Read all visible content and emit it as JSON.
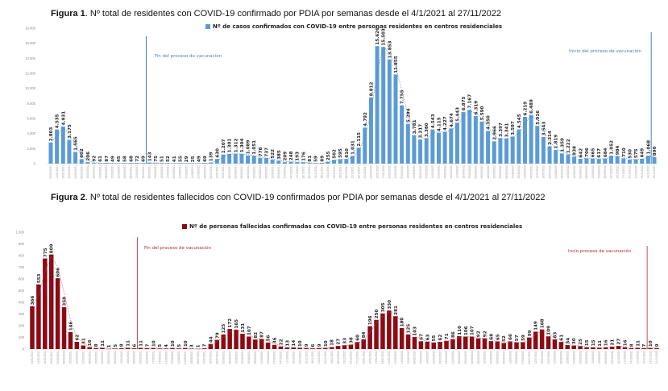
{
  "figure1": {
    "title_prefix": "Figura 1",
    "title_rest": ". Nº total de residentes con COVID-19 confirmado por PDIA por semanas desde el 4/1/2021 al 27/11/2022",
    "legend": "Nº de casos confirmados con COVID-19 entre personas residentes en centros residenciales",
    "annotation_left": "Fin del proceso de vacunación",
    "annotation_right": "Inicio del proceso de vacunación"
  },
  "figure2": {
    "title_prefix": "Figura 2",
    "title_rest": ". Nº total de residentes fallecidos con COVID-19 confirmados por PDIA por semanas desde el 4/1/2021 al 27/11/2022",
    "legend": "Nº de personas fallecidas confirmadas con COVID-19 entre personas residentes en centros residenciales",
    "annotation_left": "Fin del proceso de vacunación",
    "annotation_right": "Incio proceso de vacunación"
  },
  "chart_data": [
    {
      "type": "bar",
      "title": "Nº total de residentes con COVID-19 confirmado por PDIA por semanas desde el 4/1/2021 al 27/11/2022",
      "series_name": "Nº de casos confirmados con COVID-19 entre personas residentes en centros residenciales",
      "color": "#5b9bd5",
      "line_color": "#4a7fb5",
      "ylim": [
        0,
        18000
      ],
      "yticks": [
        0,
        2000,
        4000,
        6000,
        8000,
        10000,
        12000,
        14000,
        16000,
        18000
      ],
      "ytick_labels": [
        "0",
        "2.000",
        "4.000",
        "6.000",
        "8.000",
        "10.000",
        "12.000",
        "14.000",
        "16.000",
        "18.000"
      ],
      "legend_position": "top",
      "trendline": "dotted moving average",
      "markers": [
        {
          "after_index": 15,
          "label": "Fin del proceso de vacunación"
        },
        {
          "after_index": 97,
          "label": "Inicio del proceso de vacunación"
        }
      ],
      "categories": [
        "04/01/2021",
        "11/01/2021",
        "18/01/2021",
        "25/01/2021",
        "01/02/2021",
        "08/02/2021",
        "15/02/2021",
        "22/02/2021",
        "01/03/2021",
        "08/03/2021",
        "15/03/2021",
        "22/03/2021",
        "29/03/2021",
        "05/04/2021",
        "12/04/2021",
        "19/04/2021",
        "26/04/2021",
        "03/05/2021",
        "10/05/2021",
        "17/05/2021",
        "24/05/2021",
        "31/05/2021",
        "07/06/2021",
        "14/06/2021",
        "21/06/2021",
        "28/06/2021",
        "05/07/2021",
        "12/07/2021",
        "19/07/2021",
        "26/07/2021",
        "02/08/2021",
        "09/08/2021",
        "16/08/2021",
        "23/08/2021",
        "30/08/2021",
        "06/09/2021",
        "13/09/2021",
        "20/09/2021",
        "27/09/2021",
        "04/10/2021",
        "11/10/2021",
        "18/10/2021",
        "25/10/2021",
        "01/11/2021",
        "08/11/2021",
        "15/11/2021",
        "22/11/2021",
        "29/11/2021",
        "06/12/2021",
        "13/12/2021",
        "20/12/2021",
        "27/12/2021",
        "03/01/2022",
        "10/01/2022",
        "17/01/2022",
        "24/01/2022",
        "31/01/2022",
        "07/02/2022",
        "14/02/2022",
        "21/02/2022",
        "28/02/2022",
        "07/03/2022",
        "14/03/2022",
        "21/03/2022",
        "28/03/2022",
        "04/04/2022",
        "11/04/2022",
        "18/04/2022",
        "25/04/2022",
        "02/05/2022",
        "09/05/2022",
        "16/05/2022",
        "23/05/2022",
        "30/05/2022",
        "06/06/2022",
        "13/06/2022",
        "20/06/2022",
        "27/06/2022",
        "04/07/2022",
        "11/07/2022",
        "18/07/2022",
        "25/07/2022",
        "01/08/2022",
        "08/08/2022",
        "15/08/2022",
        "22/08/2022",
        "29/08/2022",
        "05/09/2022",
        "12/09/2022",
        "19/09/2022",
        "26/09/2022",
        "03/10/2022",
        "10/10/2022",
        "17/10/2022",
        "24/10/2022",
        "31/10/2022",
        "07/11/2022",
        "14/11/2022",
        "21/11/2022"
      ],
      "values": [
        2803,
        4535,
        4931,
        3175,
        1565,
        602,
        206,
        92,
        61,
        87,
        49,
        45,
        58,
        68,
        72,
        69,
        143,
        75,
        51,
        52,
        41,
        55,
        29,
        25,
        49,
        69,
        139,
        630,
        1207,
        1301,
        1312,
        1304,
        1089,
        1051,
        778,
        737,
        522,
        385,
        209,
        248,
        193,
        176,
        81,
        59,
        89,
        255,
        502,
        595,
        610,
        1031,
        2115,
        4792,
        8812,
        15626,
        15503,
        13853,
        11855,
        7755,
        5294,
        3781,
        3217,
        3380,
        4543,
        4115,
        4227,
        4674,
        5443,
        6875,
        7167,
        6319,
        5590,
        4350,
        2966,
        3397,
        3341,
        3597,
        4545,
        6219,
        6489,
        5016,
        3543,
        2314,
        1819,
        1359,
        1222,
        938,
        642,
        706,
        665,
        617,
        684,
        1052,
        984,
        710,
        530,
        575,
        649,
        1068,
        890
      ]
    },
    {
      "type": "bar",
      "title": "Nº total de residentes fallecidos con COVID-19 confirmados por PDIA por semanas desde el 4/1/2021 al 27/11/2022",
      "series_name": "Nº de personas fallecidas confirmadas con COVID-19 entre personas residentes en centros residenciales",
      "color": "#8b0a14",
      "line_color": "#c0505a",
      "ylim": [
        0,
        1000
      ],
      "yticks": [
        0,
        100,
        200,
        300,
        400,
        500,
        600,
        700,
        800,
        900,
        1000
      ],
      "ytick_labels": [
        "0",
        "100",
        "200",
        "300",
        "400",
        "500",
        "600",
        "700",
        "800",
        "900",
        "1.000"
      ],
      "legend_position": "top",
      "trendline": "dotted moving average",
      "markers": [
        {
          "after_index": 16,
          "label": "Fin del proceso de vacunación"
        },
        {
          "after_index": 96,
          "label": "Incio proceso de vacunación"
        }
      ],
      "categories": [
        "04/01/2021",
        "11/01/2021",
        "18/01/2021",
        "25/01/2021",
        "01/02/2021",
        "08/02/2021",
        "15/02/2021",
        "22/02/2021",
        "01/03/2021",
        "08/03/2021",
        "15/03/2021",
        "22/03/2021",
        "29/03/2021",
        "05/04/2021",
        "12/04/2021",
        "19/04/2021",
        "26/04/2021",
        "03/05/2021",
        "10/05/2021",
        "17/05/2021",
        "24/05/2021",
        "31/05/2021",
        "07/06/2021",
        "14/06/2021",
        "21/06/2021",
        "28/06/2021",
        "05/07/2021",
        "12/07/2021",
        "19/07/2021",
        "26/07/2021",
        "02/08/2021",
        "09/08/2021",
        "16/08/2021",
        "23/08/2021",
        "30/08/2021",
        "06/09/2021",
        "13/09/2021",
        "20/09/2021",
        "27/09/2021",
        "04/10/2021",
        "11/10/2021",
        "18/10/2021",
        "25/10/2021",
        "01/11/2021",
        "08/11/2021",
        "15/11/2021",
        "22/11/2021",
        "29/11/2021",
        "06/12/2021",
        "13/12/2021",
        "20/12/2021",
        "27/12/2021",
        "03/01/2022",
        "10/01/2022",
        "17/01/2022",
        "24/01/2022",
        "31/01/2022",
        "07/02/2022",
        "14/02/2022",
        "21/02/2022",
        "28/02/2022",
        "07/03/2022",
        "14/03/2022",
        "21/03/2022",
        "28/03/2022",
        "04/04/2022",
        "11/04/2022",
        "18/04/2022",
        "25/04/2022",
        "02/05/2022",
        "09/05/2022",
        "16/05/2022",
        "23/05/2022",
        "30/05/2022",
        "06/06/2022",
        "13/06/2022",
        "20/06/2022",
        "27/06/2022",
        "04/07/2022",
        "11/07/2022",
        "18/07/2022",
        "25/07/2022",
        "01/08/2022",
        "08/08/2022",
        "15/08/2022",
        "22/08/2022",
        "29/08/2022",
        "05/09/2022",
        "12/09/2022",
        "19/09/2022",
        "26/09/2022",
        "03/10/2022",
        "10/10/2022",
        "17/10/2022",
        "24/10/2022",
        "31/10/2022",
        "07/11/2022",
        "14/11/2022",
        "21/11/2022"
      ],
      "values": [
        366,
        553,
        775,
        809,
        606,
        358,
        146,
        62,
        31,
        16,
        8,
        11,
        1,
        5,
        8,
        11,
        6,
        11,
        7,
        10,
        5,
        4,
        10,
        5,
        10,
        3,
        1,
        7,
        44,
        79,
        125,
        172,
        165,
        131,
        107,
        82,
        87,
        56,
        36,
        22,
        13,
        14,
        10,
        9,
        6,
        9,
        10,
        18,
        27,
        33,
        38,
        60,
        84,
        196,
        250,
        305,
        330,
        281,
        180,
        125,
        103,
        67,
        63,
        55,
        62,
        71,
        86,
        110,
        106,
        107,
        92,
        92,
        68,
        65,
        52,
        66,
        57,
        59,
        99,
        149,
        168,
        109,
        83,
        61,
        34,
        30,
        25,
        15,
        15,
        11,
        16,
        21,
        27,
        16,
        8,
        11,
        7,
        10,
        9
      ]
    }
  ]
}
